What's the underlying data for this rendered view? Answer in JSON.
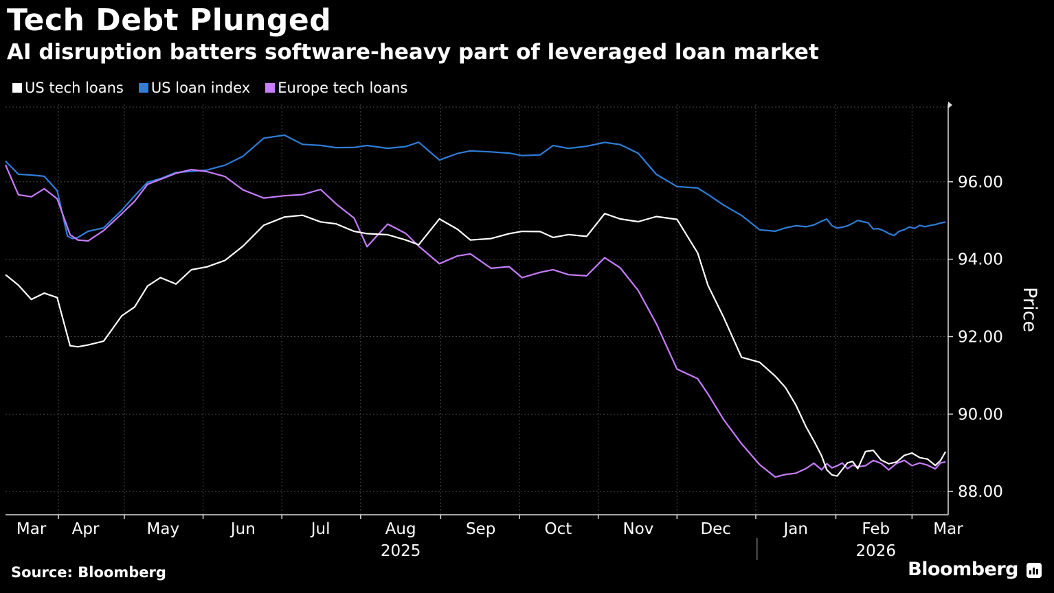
{
  "header": {
    "title": "Tech Debt Plunged",
    "subtitle": "AI disruption batters software-heavy part of leveraged loan market"
  },
  "footer": {
    "source": "Source: Bloomberg",
    "brand": "Bloomberg",
    "brand_icon": "bar-chart-icon"
  },
  "chart_data": {
    "type": "line",
    "title": "Tech Debt Plunged",
    "subtitle": "AI disruption batters software-heavy part of leveraged loan market",
    "xlabel": "",
    "ylabel": "Price",
    "ylim": [
      87.4,
      98.0
    ],
    "yticks": [
      "96.00",
      "94.00",
      "92.00",
      "90.00",
      "88.00"
    ],
    "ytick_values": [
      96,
      94,
      92,
      90,
      88
    ],
    "xlim": [
      0,
      365
    ],
    "month_labels": [
      "Mar",
      "Apr",
      "May",
      "Jun",
      "Jul",
      "Aug",
      "Sep",
      "Oct",
      "Nov",
      "Dec",
      "Jan",
      "Feb",
      "Mar"
    ],
    "month_days": [
      10,
      31,
      61,
      92,
      122,
      153,
      184,
      214,
      245,
      275,
      306,
      337,
      365
    ],
    "year_labels": [
      "2025",
      "2026"
    ],
    "year_days": [
      153,
      337
    ],
    "grid": true,
    "legend_position": "top-left",
    "series": [
      {
        "name": "US tech loans",
        "color": "#ffffff",
        "x": [
          0,
          5,
          10,
          15,
          20,
          25,
          28,
          32,
          38,
          45,
          50,
          55,
          60,
          66,
          72,
          78,
          85,
          92,
          100,
          108,
          115,
          122,
          128,
          135,
          140,
          148,
          155,
          160,
          168,
          175,
          180,
          188,
          195,
          200,
          207,
          212,
          218,
          225,
          232,
          238,
          245,
          252,
          260,
          268,
          272,
          278,
          285,
          292,
          298,
          302,
          306,
          310,
          313,
          316,
          318,
          320,
          322,
          324,
          326,
          328,
          330,
          333,
          336,
          339,
          342,
          345,
          348,
          351,
          354,
          357,
          360,
          362,
          364
        ],
        "values": [
          93.6,
          93.3,
          93.0,
          93.1,
          93.0,
          91.8,
          91.7,
          91.8,
          91.9,
          92.5,
          92.8,
          93.3,
          93.5,
          93.4,
          93.7,
          93.8,
          94.0,
          94.3,
          94.9,
          95.1,
          95.1,
          95.0,
          94.9,
          94.7,
          94.7,
          94.6,
          94.5,
          94.4,
          95.0,
          94.8,
          94.5,
          94.5,
          94.7,
          94.7,
          94.7,
          94.6,
          94.6,
          94.6,
          95.2,
          95.0,
          95.0,
          95.1,
          95.0,
          94.2,
          93.3,
          92.5,
          91.5,
          91.3,
          91.0,
          90.7,
          90.2,
          89.7,
          89.3,
          88.9,
          88.6,
          88.4,
          88.4,
          88.6,
          88.7,
          88.8,
          88.6,
          89.0,
          89.1,
          88.8,
          88.7,
          88.8,
          88.9,
          89.0,
          88.9,
          88.8,
          88.7,
          88.8,
          89.0
        ],
        "note": "series ends with an uptick near 89"
      },
      {
        "name": "US loan index",
        "color": "#2f7ed8",
        "x": [
          0,
          5,
          10,
          15,
          20,
          24,
          26,
          28,
          32,
          38,
          45,
          50,
          55,
          60,
          66,
          72,
          78,
          85,
          92,
          100,
          108,
          115,
          122,
          128,
          135,
          140,
          148,
          155,
          160,
          168,
          175,
          180,
          188,
          195,
          200,
          207,
          212,
          218,
          225,
          232,
          238,
          245,
          252,
          260,
          268,
          272,
          278,
          285,
          292,
          298,
          302,
          306,
          310,
          313,
          316,
          318,
          320,
          322,
          324,
          326,
          328,
          330,
          332,
          334,
          336,
          338,
          340,
          342,
          344,
          346,
          348,
          350,
          352,
          354,
          356,
          358,
          360,
          362,
          364
        ],
        "values": [
          96.5,
          96.2,
          96.2,
          96.1,
          95.8,
          94.6,
          94.5,
          94.6,
          94.7,
          94.8,
          95.3,
          95.6,
          96.0,
          96.1,
          96.2,
          96.3,
          96.3,
          96.4,
          96.7,
          97.1,
          97.2,
          97.0,
          96.9,
          96.9,
          96.9,
          96.9,
          96.9,
          96.9,
          97.0,
          96.6,
          96.7,
          96.8,
          96.8,
          96.7,
          96.7,
          96.7,
          96.9,
          96.9,
          96.9,
          97.0,
          97.0,
          96.7,
          96.2,
          95.9,
          95.8,
          95.7,
          95.4,
          95.1,
          94.8,
          94.7,
          94.8,
          94.9,
          94.8,
          94.9,
          95.0,
          95.0,
          94.9,
          94.8,
          94.8,
          94.9,
          94.9,
          95.0,
          95.0,
          94.9,
          94.8,
          94.8,
          94.7,
          94.7,
          94.6,
          94.7,
          94.8,
          94.8,
          94.8,
          94.9,
          94.8,
          94.9,
          94.9,
          94.9,
          95.0
        ]
      },
      {
        "name": "Europe tech loans",
        "color": "#c77dff",
        "x": [
          0,
          5,
          10,
          15,
          20,
          25,
          28,
          32,
          38,
          45,
          50,
          55,
          60,
          66,
          72,
          78,
          85,
          92,
          100,
          108,
          115,
          122,
          128,
          135,
          140,
          148,
          155,
          160,
          168,
          175,
          180,
          188,
          195,
          200,
          207,
          212,
          218,
          225,
          232,
          238,
          245,
          252,
          260,
          268,
          272,
          278,
          285,
          292,
          298,
          302,
          306,
          310,
          313,
          316,
          318,
          320,
          322,
          324,
          326,
          328,
          330,
          333,
          336,
          339,
          342,
          345,
          348,
          351,
          354,
          357,
          360,
          362,
          364
        ],
        "values": [
          96.4,
          95.7,
          95.6,
          95.8,
          95.6,
          94.6,
          94.5,
          94.5,
          94.7,
          95.2,
          95.5,
          95.9,
          96.1,
          96.2,
          96.3,
          96.3,
          96.1,
          95.8,
          95.6,
          95.6,
          95.7,
          95.8,
          95.4,
          95.1,
          94.3,
          94.9,
          94.7,
          94.3,
          93.9,
          94.1,
          94.1,
          93.8,
          93.8,
          93.5,
          93.7,
          93.7,
          93.6,
          93.6,
          94.0,
          93.8,
          93.2,
          92.3,
          91.2,
          90.9,
          90.5,
          89.9,
          89.2,
          88.7,
          88.4,
          88.4,
          88.5,
          88.6,
          88.7,
          88.6,
          88.7,
          88.6,
          88.7,
          88.7,
          88.6,
          88.7,
          88.6,
          88.7,
          88.8,
          88.7,
          88.6,
          88.7,
          88.8,
          88.7,
          88.7,
          88.7,
          88.6,
          88.7,
          88.8
        ]
      }
    ]
  }
}
